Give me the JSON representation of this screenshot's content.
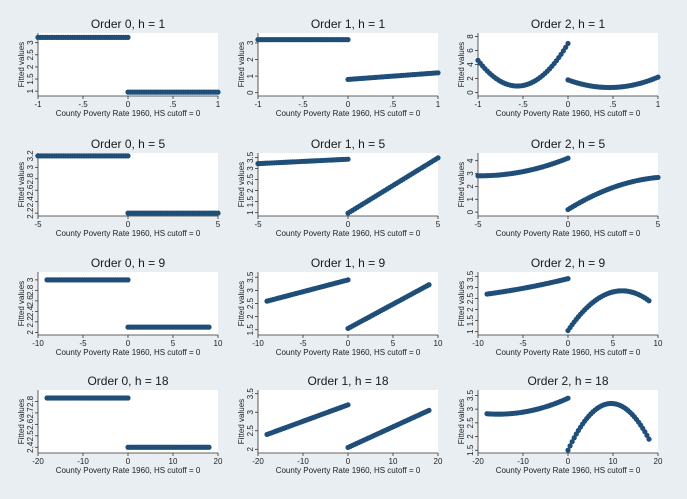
{
  "colors": {
    "background": "#e8eef2",
    "plot_background": "#ffffff",
    "marker": "#1f4e79"
  },
  "chart_data": [
    {
      "type": "scatter",
      "title": "Order 0, h = 1",
      "xlabel": "County Poverty Rate 1960, HS cutoff = 0",
      "ylabel": "Fitted values",
      "xlim": [
        -1,
        1
      ],
      "ylim": [
        0.8,
        3.4
      ],
      "xticks": [
        -1,
        -0.5,
        0,
        0.5,
        1
      ],
      "xtick_labels": [
        "-1",
        "-.5",
        "0",
        ".5",
        "1"
      ],
      "yticks": [
        1,
        1.5,
        2,
        2.5,
        3
      ],
      "ytick_labels": [
        "1",
        "1.5",
        "2",
        "2.5",
        "3"
      ],
      "segments": [
        {
          "x_start": -1,
          "x_end": 0,
          "coef": [
            3.22
          ]
        },
        {
          "x_start": 0,
          "x_end": 1,
          "coef": [
            0.96
          ]
        }
      ]
    },
    {
      "type": "scatter",
      "title": "Order 1, h = 1",
      "xlabel": "County Poverty Rate 1960, HS cutoff = 0",
      "ylabel": "Fitted values",
      "xlim": [
        -1,
        1
      ],
      "ylim": [
        -0.2,
        3.6
      ],
      "xticks": [
        -1,
        -0.5,
        0,
        0.5,
        1
      ],
      "xtick_labels": [
        "-1",
        "-.5",
        "0",
        ".5",
        "1"
      ],
      "yticks": [
        0,
        1,
        2,
        3
      ],
      "ytick_labels": [
        "0",
        "1",
        "2",
        "3"
      ],
      "segments": [
        {
          "x_start": -1,
          "x_end": 0,
          "coef": [
            3.2,
            0
          ]
        },
        {
          "x_start": 0,
          "x_end": 1,
          "coef": [
            0.8,
            0.4
          ]
        }
      ]
    },
    {
      "type": "scatter",
      "title": "Order 2, h = 1",
      "xlabel": "County Poverty Rate 1960, HS cutoff = 0",
      "ylabel": "Fitted values",
      "xlim": [
        -1,
        1
      ],
      "ylim": [
        -0.5,
        8.5
      ],
      "xticks": [
        -1,
        -0.5,
        0,
        0.5,
        1
      ],
      "xtick_labels": [
        "-1",
        "-.5",
        "0",
        ".5",
        "1"
      ],
      "yticks": [
        0,
        2,
        4,
        6,
        8
      ],
      "ytick_labels": [
        "0",
        "2",
        "4",
        "6",
        "8"
      ],
      "segments": [
        {
          "x_start": -1,
          "x_end": 0,
          "coef": [
            7,
            21.6,
            19.2
          ]
        },
        {
          "x_start": 0,
          "x_end": 1,
          "coef": [
            1.8,
            -4.7,
            5.1
          ]
        }
      ]
    },
    {
      "type": "scatter",
      "title": "Order 0, h = 5",
      "xlabel": "County Poverty Rate 1960, HS cutoff = 0",
      "ylabel": "Fitted values",
      "xlim": [
        -5,
        5
      ],
      "ylim": [
        2.15,
        3.25
      ],
      "xticks": [
        -5,
        0,
        5
      ],
      "xtick_labels": [
        "-5",
        "0",
        "5"
      ],
      "yticks": [
        2.2,
        2.4,
        2.6,
        2.8,
        3,
        3.2
      ],
      "ytick_labels": [
        "2.2",
        "2.4",
        "2.6",
        "2.8",
        "3",
        "3.2"
      ],
      "segments": [
        {
          "x_start": -5,
          "x_end": 0,
          "coef": [
            3.2
          ]
        },
        {
          "x_start": 0,
          "x_end": 5,
          "coef": [
            2.2
          ]
        }
      ]
    },
    {
      "type": "scatter",
      "title": "Order 1, h = 5",
      "xlabel": "County Poverty Rate 1960, HS cutoff = 0",
      "ylabel": "Fitted values",
      "xlim": [
        -5,
        5
      ],
      "ylim": [
        0.85,
        3.7
      ],
      "xticks": [
        -5,
        0,
        5
      ],
      "xtick_labels": [
        "-5",
        "0",
        "5"
      ],
      "yticks": [
        1,
        1.5,
        2,
        2.5,
        3,
        3.5
      ],
      "ytick_labels": [
        "1",
        "1.5",
        "2",
        "2.5",
        "3",
        "3.5"
      ],
      "segments": [
        {
          "x_start": -5,
          "x_end": 0,
          "coef": [
            3.42,
            0.04
          ]
        },
        {
          "x_start": 0,
          "x_end": 5,
          "coef": [
            0.98,
            0.5
          ]
        }
      ]
    },
    {
      "type": "scatter",
      "title": "Order 2, h = 5",
      "xlabel": "County Poverty Rate 1960, HS cutoff = 0",
      "ylabel": "Fitted values",
      "xlim": [
        -5,
        5
      ],
      "ylim": [
        -0.3,
        4.6
      ],
      "xticks": [
        -5,
        0,
        5
      ],
      "xtick_labels": [
        "-5",
        "0",
        "5"
      ],
      "yticks": [
        0,
        1,
        2,
        3,
        4
      ],
      "ytick_labels": [
        "0",
        "1",
        "2",
        "3",
        "4"
      ],
      "segments": [
        {
          "x_start": -5,
          "x_end": 0,
          "coef": [
            4.2,
            0.562,
            0.0576
          ]
        },
        {
          "x_start": 0,
          "x_end": 5,
          "coef": [
            0.2,
            0.875,
            -0.075
          ]
        }
      ]
    },
    {
      "type": "scatter",
      "title": "Order 0, h = 9",
      "xlabel": "County Poverty Rate 1960, HS cutoff = 0",
      "ylabel": "Fitted values",
      "xlim": [
        -10,
        10
      ],
      "ylim": [
        1.95,
        3.15
      ],
      "xticks": [
        -10,
        -5,
        0,
        5,
        10
      ],
      "xtick_labels": [
        "-10",
        "-5",
        "0",
        "5",
        "10"
      ],
      "yticks": [
        2,
        2.2,
        2.4,
        2.6,
        2.8,
        3
      ],
      "ytick_labels": [
        "2",
        "2.2",
        "2.4",
        "2.6",
        "2.8",
        "3"
      ],
      "segments": [
        {
          "x_start": -9,
          "x_end": 0,
          "coef": [
            3
          ]
        },
        {
          "x_start": 0,
          "x_end": 9,
          "coef": [
            2.1
          ]
        }
      ]
    },
    {
      "type": "scatter",
      "title": "Order 1, h = 9",
      "xlabel": "County Poverty Rate 1960, HS cutoff = 0",
      "ylabel": "Fitted values",
      "xlim": [
        -10,
        10
      ],
      "ylim": [
        1.3,
        3.7
      ],
      "xticks": [
        -10,
        -5,
        0,
        5,
        10
      ],
      "xtick_labels": [
        "-10",
        "-5",
        "0",
        "5",
        "10"
      ],
      "yticks": [
        1.5,
        2,
        2.5,
        3,
        3.5
      ],
      "ytick_labels": [
        "1.5",
        "2",
        "2.5",
        "3",
        "3.5"
      ],
      "segments": [
        {
          "x_start": -9,
          "x_end": 0,
          "coef": [
            3.4,
            0.09
          ]
        },
        {
          "x_start": 0,
          "x_end": 9,
          "coef": [
            1.55,
            0.185
          ]
        }
      ]
    },
    {
      "type": "scatter",
      "title": "Order 2, h = 9",
      "xlabel": "County Poverty Rate 1960, HS cutoff = 0",
      "ylabel": "Fitted values",
      "xlim": [
        -10,
        10
      ],
      "ylim": [
        0.85,
        3.7
      ],
      "xticks": [
        -10,
        -5,
        0,
        5,
        10
      ],
      "xtick_labels": [
        "-10",
        "-5",
        "0",
        "5",
        "10"
      ],
      "yticks": [
        1,
        1.5,
        2,
        2.5,
        3,
        3.5
      ],
      "ytick_labels": [
        "1",
        "1.5",
        "2",
        "2.5",
        "3",
        "3.5"
      ],
      "segments": [
        {
          "x_start": -9,
          "x_end": 0,
          "coef": [
            3.4,
            0.1,
            0.0025
          ]
        },
        {
          "x_start": 0,
          "x_end": 9,
          "coef": [
            1.05,
            0.6,
            -0.05
          ]
        }
      ]
    },
    {
      "type": "scatter",
      "title": "Order 0, h = 18",
      "xlabel": "County Poverty Rate 1960, HS cutoff = 0",
      "ylabel": "Fitted values",
      "xlim": [
        -20,
        20
      ],
      "ylim": [
        2.35,
        2.9
      ],
      "xticks": [
        -20,
        -10,
        0,
        10,
        20
      ],
      "xtick_labels": [
        "-20",
        "-10",
        "0",
        "10",
        "20"
      ],
      "yticks": [
        2.4,
        2.5,
        2.6,
        2.7,
        2.8
      ],
      "ytick_labels": [
        "2.4",
        "2.5",
        "2.6",
        "2.7",
        "2.8"
      ],
      "segments": [
        {
          "x_start": -18,
          "x_end": 0,
          "coef": [
            2.83
          ]
        },
        {
          "x_start": 0,
          "x_end": 18,
          "coef": [
            2.4
          ]
        }
      ]
    },
    {
      "type": "scatter",
      "title": "Order 1, h = 18",
      "xlabel": "County Poverty Rate 1960, HS cutoff = 0",
      "ylabel": "Fitted values",
      "xlim": [
        -20,
        20
      ],
      "ylim": [
        1.9,
        3.6
      ],
      "xticks": [
        -20,
        -10,
        0,
        10,
        20
      ],
      "xtick_labels": [
        "-20",
        "-10",
        "0",
        "10",
        "20"
      ],
      "yticks": [
        2,
        2.5,
        3,
        3.5
      ],
      "ytick_labels": [
        "2",
        "2.5",
        "3",
        "3.5"
      ],
      "segments": [
        {
          "x_start": -18,
          "x_end": 0,
          "coef": [
            3.2,
            0.0444
          ]
        },
        {
          "x_start": 0,
          "x_end": 18,
          "coef": [
            2.05,
            0.0556
          ]
        }
      ]
    },
    {
      "type": "scatter",
      "title": "Order 2, h = 18",
      "xlabel": "County Poverty Rate 1960, HS cutoff = 0",
      "ylabel": "Fitted values",
      "xlim": [
        -20,
        20
      ],
      "ylim": [
        1.4,
        3.7
      ],
      "xticks": [
        -20,
        -10,
        0,
        10,
        20
      ],
      "xtick_labels": [
        "-20",
        "-10",
        "0",
        "10",
        "20"
      ],
      "yticks": [
        1.5,
        2,
        2.5,
        3,
        3.5
      ],
      "ytick_labels": [
        "1.5",
        "2",
        "2.5",
        "3",
        "3.5"
      ],
      "segments": [
        {
          "x_start": -18,
          "x_end": 0,
          "coef": [
            3.4,
            0.075,
            0.00242
          ]
        },
        {
          "x_start": 0,
          "x_end": 18,
          "coef": [
            1.5,
            0.3556,
            -0.0185
          ]
        }
      ]
    }
  ]
}
